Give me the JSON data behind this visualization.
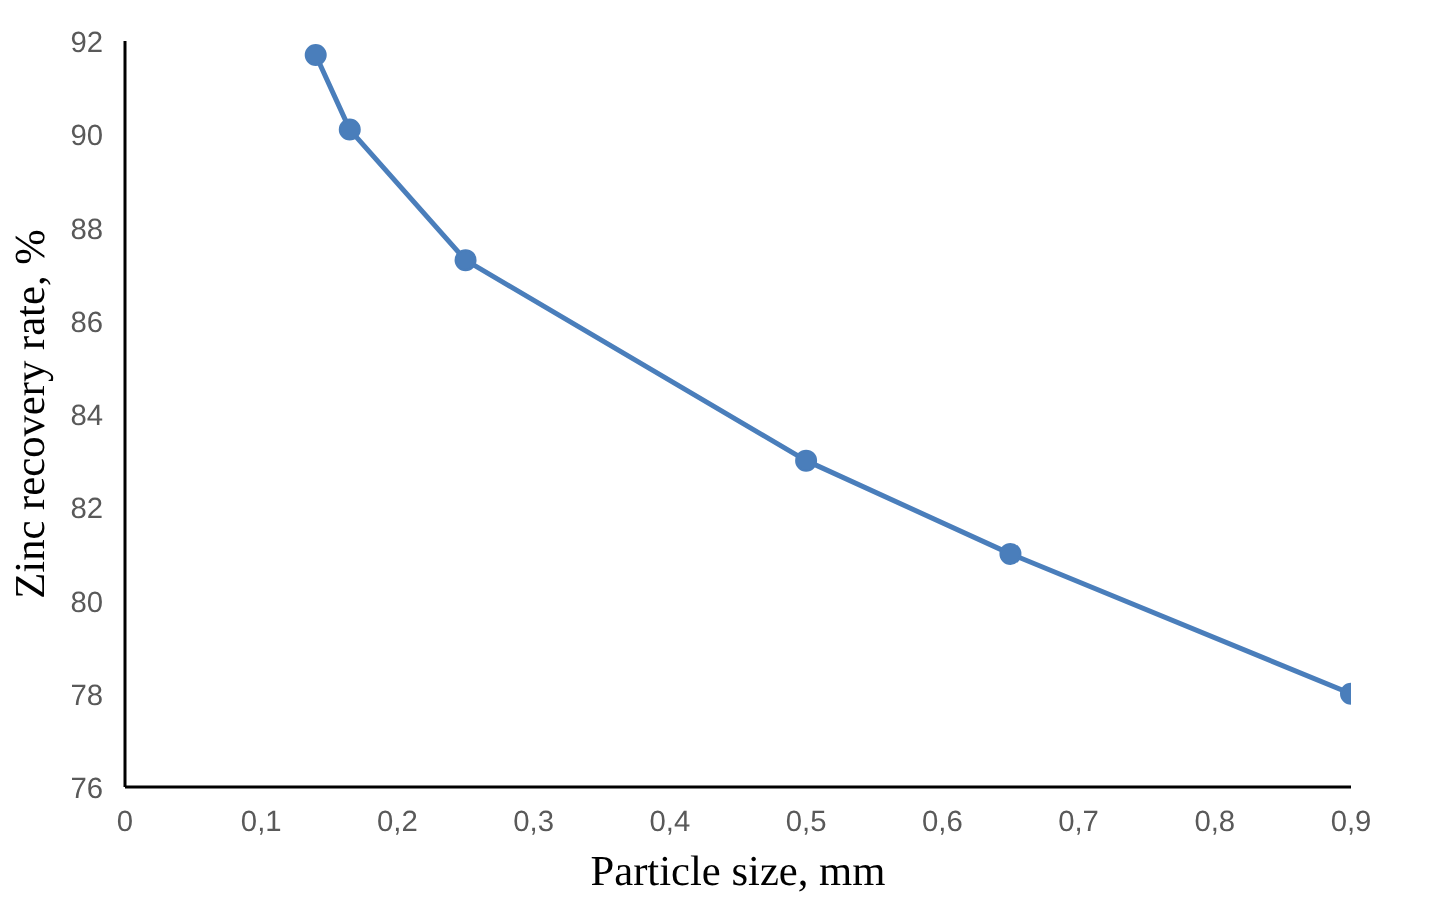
{
  "chart_data": {
    "type": "line",
    "xlabel": "Particle size, mm",
    "ylabel": "Zinc recovery rate, %",
    "x": [
      0.14,
      0.165,
      0.25,
      0.5,
      0.65,
      0.9
    ],
    "series": [
      {
        "color": "#4a7ebb",
        "values": [
          91.7,
          90.1,
          87.3,
          83.0,
          81.0,
          78.0
        ]
      }
    ],
    "xlim": [
      0,
      0.9
    ],
    "ylim": [
      76,
      92
    ],
    "xticks": [
      0,
      {
        "value": 0.1,
        "label": "0,1"
      },
      {
        "value": 0.2,
        "label": "0,2"
      },
      {
        "value": 0.3,
        "label": "0,3"
      },
      {
        "value": 0.4,
        "label": "0,4"
      },
      {
        "value": 0.5,
        "label": "0,5"
      },
      {
        "value": 0.6,
        "label": "0,6"
      },
      {
        "value": 0.7,
        "label": "0,7"
      },
      {
        "value": 0.8,
        "label": "0,8"
      },
      {
        "value": 0.9,
        "label": "0,9"
      }
    ],
    "yticks": [
      76,
      78,
      80,
      82,
      84,
      86,
      88,
      90,
      92
    ],
    "grid": false,
    "marker": "circle",
    "line_style": "solid"
  }
}
